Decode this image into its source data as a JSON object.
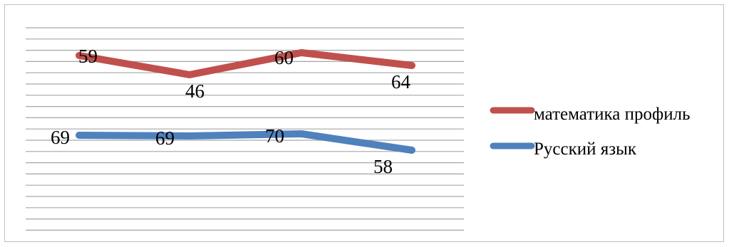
{
  "chart_data": {
    "type": "line",
    "categories": [
      "",
      "",
      "",
      ""
    ],
    "series": [
      {
        "name": "математика профиль",
        "values": [
          59,
          46,
          60,
          64
        ],
        "color": "#c0504d"
      },
      {
        "name": "Русский язык",
        "values": [
          69,
          69,
          70,
          58
        ],
        "color": "#4f81bd"
      }
    ],
    "title": "",
    "xlabel": "",
    "ylabel": "",
    "grid": true,
    "legend_position": "right"
  }
}
